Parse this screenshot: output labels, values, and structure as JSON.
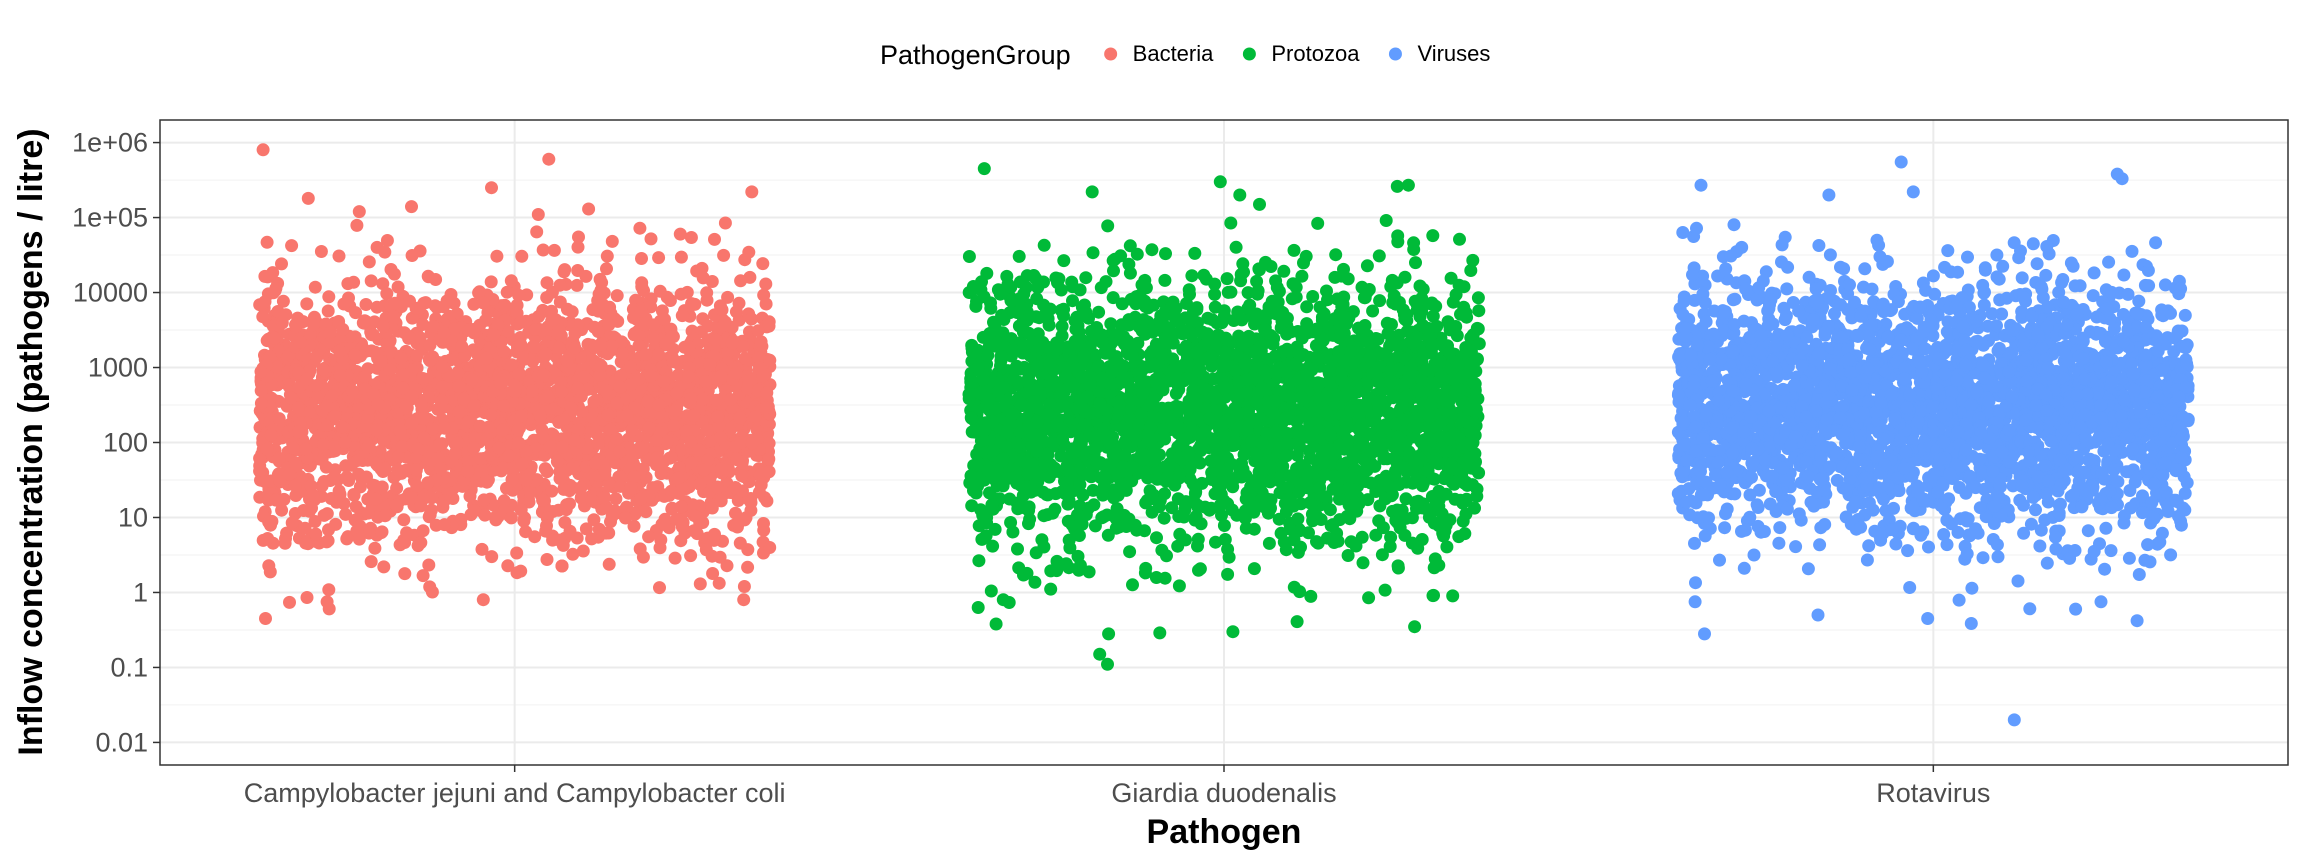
{
  "chart_data": {
    "type": "scatter",
    "title": "",
    "xlabel": "Pathogen",
    "ylabel": "Inflow concentration (pathogens / litre)",
    "y_scale": "log10",
    "ylim": [
      0.005,
      2000000
    ],
    "y_ticks": [
      0.01,
      0.1,
      1,
      10,
      100,
      1000,
      10000,
      100000,
      1000000
    ],
    "y_tick_labels": [
      "0.01",
      "0.1",
      "1",
      "10",
      "100",
      "1000",
      "10000",
      "1e+05",
      "1e+06"
    ],
    "categories": [
      "Campylobacter jejuni and Campylobacter coli",
      "Giardia duodenalis",
      "Rotavirus"
    ],
    "grid": true,
    "jitter": true,
    "legend": {
      "title": "PathogenGroup",
      "position": "top",
      "entries": [
        {
          "label": "Bacteria",
          "color": "#F8766D"
        },
        {
          "label": "Protozoa",
          "color": "#00BA38"
        },
        {
          "label": "Viruses",
          "color": "#619CFF"
        }
      ]
    },
    "series": [
      {
        "name": "Bacteria",
        "category": "Campylobacter jejuni and Campylobacter coli",
        "color": "#F8766D",
        "n_points": 3000,
        "log10_center": 2.45,
        "log10_sd": 0.85,
        "log10_min": -0.3,
        "log10_max": 4.95,
        "outliers": [
          600000,
          800000,
          250000,
          220000,
          180000,
          140000,
          130000,
          120000,
          110000,
          0.45,
          0.75,
          0.8,
          1.2,
          1.3
        ]
      },
      {
        "name": "Protozoa",
        "category": "Giardia duodenalis",
        "color": "#00BA38",
        "n_points": 3000,
        "log10_center": 2.45,
        "log10_sd": 0.85,
        "log10_min": -1.0,
        "log10_max": 5.0,
        "outliers": [
          450000,
          300000,
          270000,
          260000,
          220000,
          200000,
          150000,
          0.15,
          0.11,
          0.3,
          0.28,
          0.38,
          0.8,
          0.9
        ]
      },
      {
        "name": "Viruses",
        "category": "Rotavirus",
        "color": "#619CFF",
        "n_points": 3000,
        "log10_center": 2.5,
        "log10_sd": 0.85,
        "log10_min": -0.6,
        "log10_max": 4.95,
        "outliers": [
          550000,
          380000,
          330000,
          270000,
          220000,
          200000,
          0.02,
          0.28,
          0.45,
          0.42,
          0.5,
          0.75,
          0.6
        ]
      }
    ]
  }
}
